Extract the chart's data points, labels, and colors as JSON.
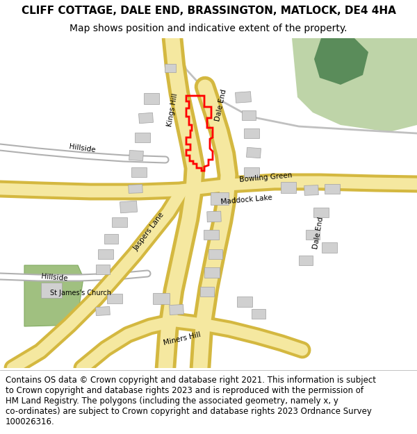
{
  "title": "CLIFF COTTAGE, DALE END, BRASSINGTON, MATLOCK, DE4 4HA",
  "subtitle": "Map shows position and indicative extent of the property.",
  "copyright_text": "Contains OS data © Crown copyright and database right 2021. This information is subject\nto Crown copyright and database rights 2023 and is reproduced with the permission of\nHM Land Registry. The polygons (including the associated geometry, namely x, y\nco-ordinates) are subject to Crown copyright and database rights 2023 Ordnance Survey\n100026316.",
  "map_bg": "#ffffff",
  "road_fill": "#f5e8a0",
  "road_edge": "#d4b840",
  "road_minor_fill": "#ffffff",
  "road_minor_edge": "#b8b8b8",
  "path_color": "#c0c0c0",
  "building_fill": "#d0d0d0",
  "building_edge": "#a0a0a0",
  "green_light": "#bed4a8",
  "green_dark": "#5a8c5a",
  "church_green": "#a0c080",
  "red_plot": "#ff0000",
  "title_fs": 11,
  "sub_fs": 10,
  "copy_fs": 8.5
}
